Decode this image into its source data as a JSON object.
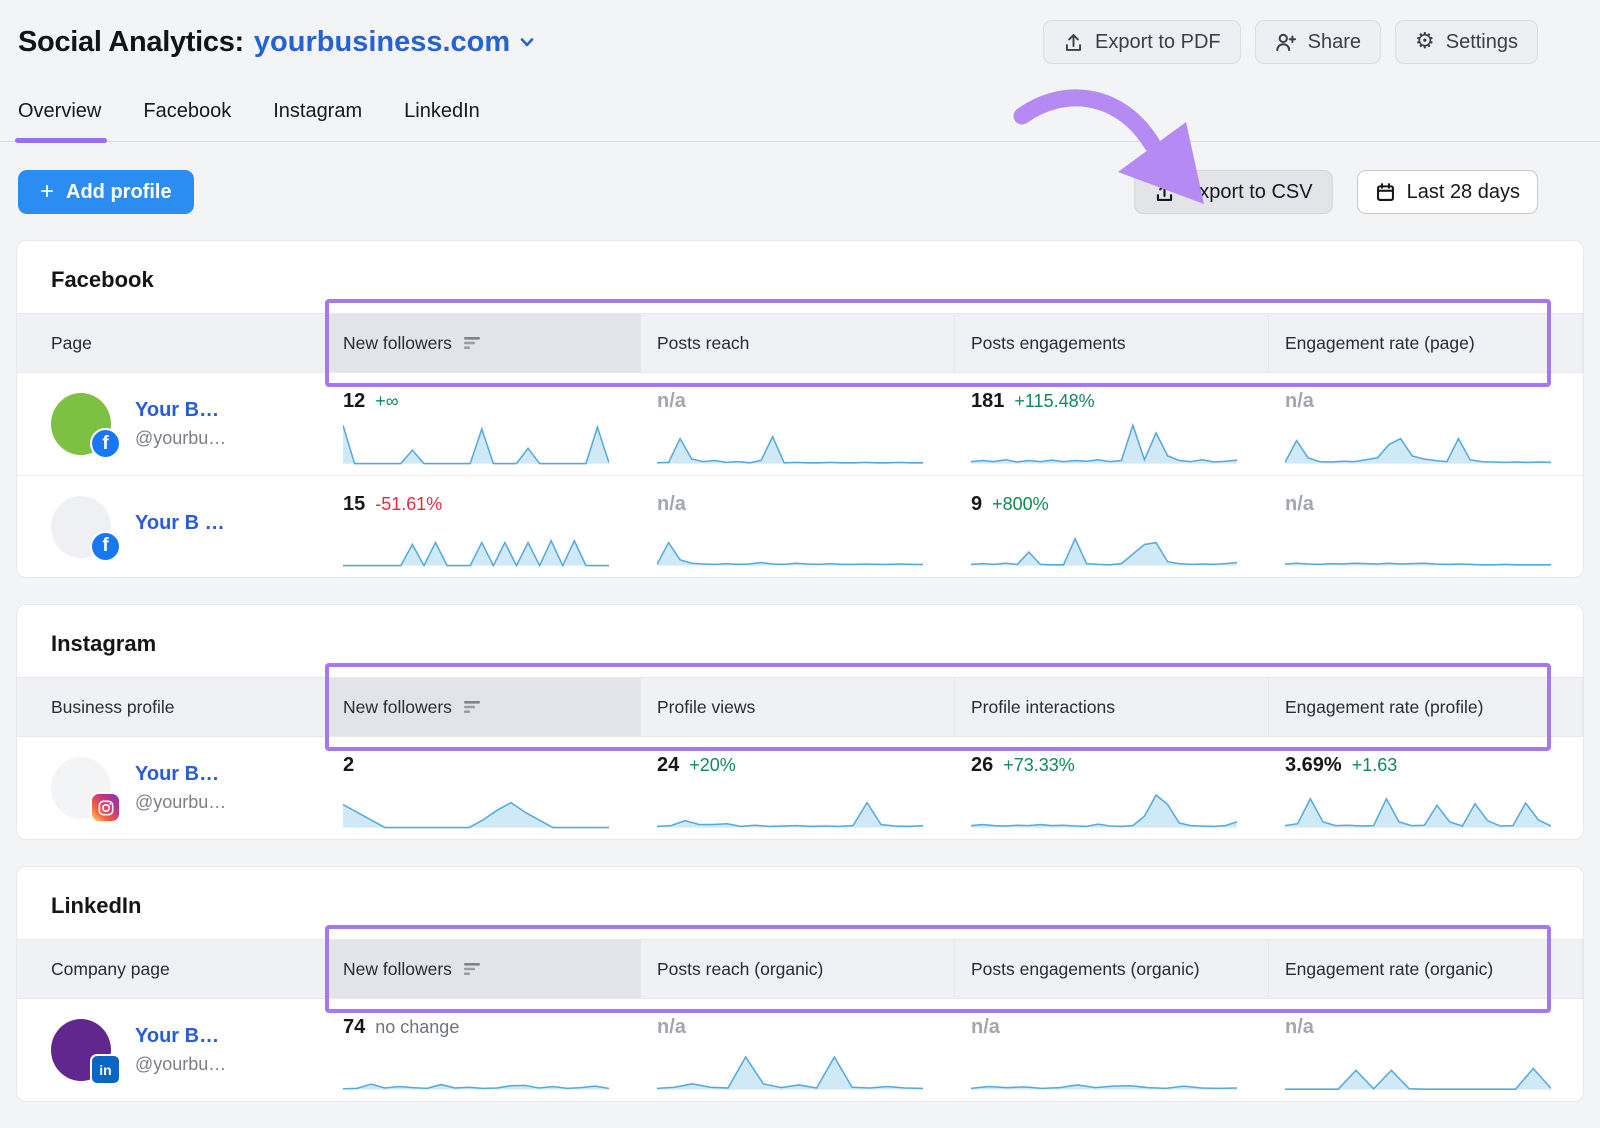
{
  "header": {
    "title": "Social Analytics:",
    "project": "yourbusiness.com",
    "actions": [
      {
        "label": "Export to PDF",
        "icon": "upload-icon"
      },
      {
        "label": "Share",
        "icon": "person-add-icon"
      },
      {
        "label": "Settings",
        "icon": "gear-icon"
      }
    ]
  },
  "tabs": [
    {
      "label": "Overview",
      "active": true
    },
    {
      "label": "Facebook",
      "active": false
    },
    {
      "label": "Instagram",
      "active": false
    },
    {
      "label": "LinkedIn",
      "active": false
    }
  ],
  "toolbar": {
    "add_profile_label": "Add profile",
    "export_csv_label": "Export to CSV",
    "date_range_label": "Last 28 days"
  },
  "annotation": {
    "arrow_color": "#b58af3",
    "highlight_color": "#a478f0"
  },
  "sections": [
    {
      "title": "Facebook",
      "columns": [
        "Page",
        "New followers",
        "Posts reach",
        "Posts engagements",
        "Engagement rate (page)"
      ],
      "sorted_metric_index": 0,
      "rows": [
        {
          "name": "Your B…",
          "handle": "@yourbu…",
          "network": "facebook",
          "avatar_color": "#7cc142",
          "cells": [
            {
              "value": "12",
              "delta": "+∞",
              "delta_color": "green",
              "spark": [
                10,
                0,
                0,
                0,
                0,
                0,
                3.5,
                0,
                0,
                0,
                0,
                0,
                9,
                0,
                0,
                0,
                4,
                0,
                0,
                0,
                0,
                0,
                9.5,
                0.2
              ]
            },
            {
              "value": "n/a",
              "na": true,
              "spark": [
                0.2,
                0.3,
                6.5,
                1.2,
                0.5,
                0.8,
                0.3,
                0.5,
                0.2,
                0.8,
                7,
                0.2,
                0.3,
                0.2,
                0.2,
                0.3,
                0.2,
                0.2,
                0.3,
                0.2,
                0.2,
                0.3,
                0.2,
                0.2
              ]
            },
            {
              "value": "181",
              "delta": "+115.48%",
              "delta_color": "green",
              "spark": [
                0.5,
                0.8,
                0.5,
                1,
                0.4,
                0.8,
                0.5,
                0.9,
                0.5,
                0.8,
                0.6,
                1,
                0.5,
                0.8,
                10,
                1,
                8,
                2,
                0.8,
                0.5,
                1,
                0.4,
                0.6,
                0.9
              ]
            },
            {
              "value": "n/a",
              "na": true,
              "spark": [
                0.3,
                6,
                1.5,
                0.5,
                0.4,
                0.6,
                0.5,
                1,
                1.5,
                5,
                6.5,
                2,
                1.2,
                0.8,
                0.5,
                6.5,
                1,
                0.5,
                0.4,
                0.3,
                0.4,
                0.3,
                0.4,
                0.3
              ]
            }
          ]
        },
        {
          "name": "Your B …",
          "handle": "",
          "network": "facebook",
          "avatar_color": "#eef0f3",
          "cells": [
            {
              "value": "15",
              "delta": "-51.61%",
              "delta_color": "red",
              "spark": [
                0,
                0,
                0,
                0,
                0,
                0,
                5.5,
                0,
                6,
                0,
                0,
                0,
                6,
                0,
                6,
                0,
                6,
                0,
                6.5,
                0,
                6.5,
                0,
                0,
                0
              ]
            },
            {
              "value": "n/a",
              "na": true,
              "spark": [
                0.3,
                6,
                1.5,
                0.6,
                0.4,
                0.3,
                0.5,
                0.3,
                0.4,
                0.8,
                0.4,
                0.3,
                0.6,
                0.4,
                0.3,
                0.5,
                0.3,
                0.3,
                0.4,
                0.3,
                0.3,
                0.4,
                0.3,
                0.3
              ]
            },
            {
              "value": "9",
              "delta": "+800%",
              "delta_color": "green",
              "spark": [
                0.3,
                0.5,
                0.3,
                0.6,
                0.3,
                3.5,
                0.3,
                0.2,
                0.2,
                7,
                0.5,
                0.3,
                0.2,
                0.5,
                3,
                5.5,
                6,
                1,
                0.5,
                0.3,
                0.4,
                0.3,
                0.5,
                0.8
              ]
            },
            {
              "value": "n/a",
              "na": true,
              "spark": [
                0.4,
                0.6,
                0.4,
                0.3,
                0.5,
                0.4,
                0.6,
                0.5,
                0.4,
                0.6,
                0.4,
                0.5,
                0.6,
                0.4,
                0.3,
                0.4,
                0.3,
                0.2,
                0.2,
                0.3,
                0.2,
                0.2,
                0.2,
                0.2
              ]
            }
          ]
        }
      ]
    },
    {
      "title": "Instagram",
      "columns": [
        "Business profile",
        "New followers",
        "Profile views",
        "Profile interactions",
        "Engagement rate (profile)"
      ],
      "sorted_metric_index": 0,
      "rows": [
        {
          "name": "Your B…",
          "handle": "@yourbu…",
          "network": "instagram",
          "avatar_color": "#f3f4f6",
          "cells": [
            {
              "value": "2",
              "spark": [
                6,
                4,
                2,
                0,
                0,
                0,
                0,
                0,
                0,
                0,
                2,
                4.5,
                6.5,
                4,
                2,
                0,
                0,
                0,
                0,
                0
              ]
            },
            {
              "value": "24",
              "delta": "+20%",
              "delta_color": "green",
              "spark": [
                0.3,
                0.5,
                1.8,
                0.8,
                0.8,
                1,
                0.3,
                0.6,
                0.3,
                0.4,
                0.5,
                0.3,
                0.4,
                0.3,
                0.5,
                6.5,
                0.8,
                0.4,
                0.3,
                0.5
              ]
            },
            {
              "value": "26",
              "delta": "+73.33%",
              "delta_color": "green",
              "spark": [
                0.5,
                0.8,
                0.5,
                0.4,
                0.6,
                0.5,
                0.8,
                0.5,
                0.6,
                0.4,
                0.3,
                0.9,
                0.4,
                0.3,
                0.5,
                3,
                8.5,
                6,
                1.2,
                0.5,
                0.4,
                0.3,
                0.5,
                1.5
              ]
            },
            {
              "value": "3.69%",
              "delta": "+1.63",
              "delta_color": "green",
              "spark": [
                0.5,
                1,
                7.5,
                1.5,
                0.5,
                0.6,
                0.4,
                0.5,
                7.5,
                1.5,
                0.5,
                0.6,
                5.8,
                1.5,
                0.4,
                6.2,
                1.8,
                0.4,
                0.5,
                6.4,
                2,
                0.4
              ]
            }
          ]
        }
      ]
    },
    {
      "title": "LinkedIn",
      "columns": [
        "Company page",
        "New followers",
        "Posts reach (organic)",
        "Posts engagements (organic)",
        "Engagement rate (organic)"
      ],
      "sorted_metric_index": 0,
      "rows": [
        {
          "name": "Your B…",
          "handle": "@yourbu…",
          "network": "linkedin",
          "avatar_color": "#61278f",
          "cells": [
            {
              "value": "74",
              "delta": "no change",
              "delta_color": "gray",
              "spark": [
                0.2,
                0.3,
                1.4,
                0.4,
                0.8,
                0.5,
                0.3,
                1.3,
                0.4,
                0.6,
                0.3,
                0.4,
                1,
                1.1,
                0.4,
                0.8,
                0.3,
                0.5,
                0.9,
                0.3
              ]
            },
            {
              "value": "n/a",
              "na": true,
              "spark": [
                0.3,
                0.6,
                1.5,
                0.6,
                0.4,
                8.5,
                1.5,
                0.5,
                1.2,
                0.4,
                8.5,
                0.6,
                0.4,
                0.8,
                0.4,
                0.3
              ]
            },
            {
              "value": "n/a",
              "na": true,
              "spark": [
                0.3,
                0.8,
                0.5,
                0.7,
                0.3,
                0.5,
                1.2,
                0.5,
                0.9,
                1,
                0.5,
                0.3,
                0.9,
                0.4,
                0.3,
                0.4
              ]
            },
            {
              "value": "n/a",
              "na": true,
              "spark": [
                0.1,
                0.1,
                0.1,
                0.1,
                5,
                0.2,
                5,
                0.2,
                0.1,
                0.1,
                0.1,
                0.1,
                0.1,
                0.1,
                5.5,
                0.3
              ]
            }
          ]
        }
      ]
    }
  ]
}
